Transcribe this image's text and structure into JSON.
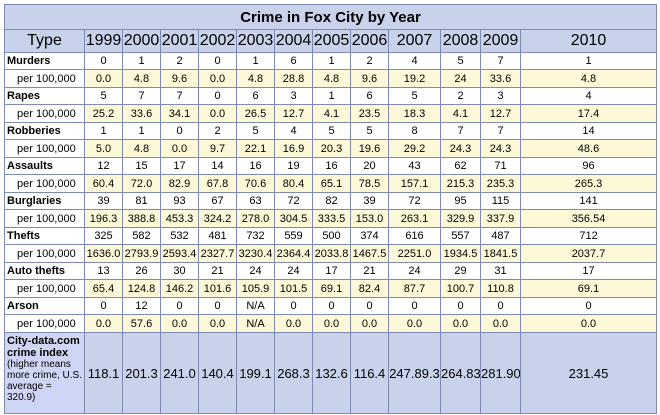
{
  "title": "Crime in Fox City by Year",
  "type_header": "Type",
  "years": [
    "1999",
    "2000",
    "2001",
    "2002",
    "2003",
    "2004",
    "2005",
    "2006",
    "2007",
    "2008",
    "2009",
    "2010"
  ],
  "rate_label": "per 100,000",
  "rows": [
    {
      "label": "Murders",
      "counts": [
        "0",
        "1",
        "2",
        "0",
        "1",
        "6",
        "1",
        "2",
        "4",
        "5",
        "7",
        "1"
      ],
      "rates": [
        "0.0",
        "4.8",
        "9.6",
        "0.0",
        "4.8",
        "28.8",
        "4.8",
        "9.6",
        "19.2",
        "24",
        "33.6",
        "4.8"
      ]
    },
    {
      "label": "Rapes",
      "counts": [
        "5",
        "7",
        "7",
        "0",
        "6",
        "3",
        "1",
        "6",
        "5",
        "2",
        "3",
        "4"
      ],
      "rates": [
        "25.2",
        "33.6",
        "34.1",
        "0.0",
        "26.5",
        "12.7",
        "4.1",
        "23.5",
        "18.3",
        "4.1",
        "12.7",
        "17.4"
      ]
    },
    {
      "label": "Robberies",
      "counts": [
        "1",
        "1",
        "0",
        "2",
        "5",
        "4",
        "5",
        "5",
        "8",
        "7",
        "7",
        "14"
      ],
      "rates": [
        "5.0",
        "4.8",
        "0.0",
        "9.7",
        "22.1",
        "16.9",
        "20.3",
        "19.6",
        "29.2",
        "24.3",
        "24.3",
        "48.6"
      ]
    },
    {
      "label": "Assaults",
      "counts": [
        "12",
        "15",
        "17",
        "14",
        "16",
        "19",
        "16",
        "20",
        "43",
        "62",
        "71",
        "96"
      ],
      "rates": [
        "60.4",
        "72.0",
        "82.9",
        "67.8",
        "70.6",
        "80.4",
        "65.1",
        "78.5",
        "157.1",
        "215.3",
        "235.3",
        "265.3"
      ]
    },
    {
      "label": "Burglaries",
      "counts": [
        "39",
        "81",
        "93",
        "67",
        "63",
        "72",
        "82",
        "39",
        "72",
        "95",
        "115",
        "141"
      ],
      "rates": [
        "196.3",
        "388.8",
        "453.3",
        "324.2",
        "278.0",
        "304.5",
        "333.5",
        "153.0",
        "263.1",
        "329.9",
        "337.9",
        "356.54"
      ]
    },
    {
      "label": "Thefts",
      "counts": [
        "325",
        "582",
        "532",
        "481",
        "732",
        "559",
        "500",
        "374",
        "616",
        "557",
        "487",
        "712"
      ],
      "rates": [
        "1636.0",
        "2793.9",
        "2593.4",
        "2327.7",
        "3230.4",
        "2364.4",
        "2033.8",
        "1467.5",
        "2251.0",
        "1934.5",
        "1841.5",
        "2037.7"
      ]
    },
    {
      "label": "Auto thefts",
      "counts": [
        "13",
        "26",
        "30",
        "21",
        "24",
        "24",
        "17",
        "21",
        "24",
        "29",
        "31",
        "17"
      ],
      "rates": [
        "65.4",
        "124.8",
        "146.2",
        "101.6",
        "105.9",
        "101.5",
        "69.1",
        "82.4",
        "87.7",
        "100.7",
        "110.8",
        "69.1"
      ]
    },
    {
      "label": "Arson",
      "counts": [
        "0",
        "12",
        "0",
        "0",
        "N/A",
        "0",
        "0",
        "0",
        "0",
        "0",
        "0",
        "0"
      ],
      "rates": [
        "0.0",
        "57.6",
        "0.0",
        "0.0",
        "N/A",
        "0.0",
        "0.0",
        "0.0",
        "0.0",
        "0.0",
        "0.0",
        "0.0"
      ]
    }
  ],
  "index": {
    "label_title": "City-data.com crime index",
    "label_note": "(higher means more crime, U.S. average = 320.9)",
    "values": [
      "118.1",
      "201.3",
      "241.0",
      "140.4",
      "199.1",
      "268.3",
      "132.6",
      "116.4",
      "247.89.3",
      "264.83",
      "281.90",
      "231.45"
    ]
  }
}
